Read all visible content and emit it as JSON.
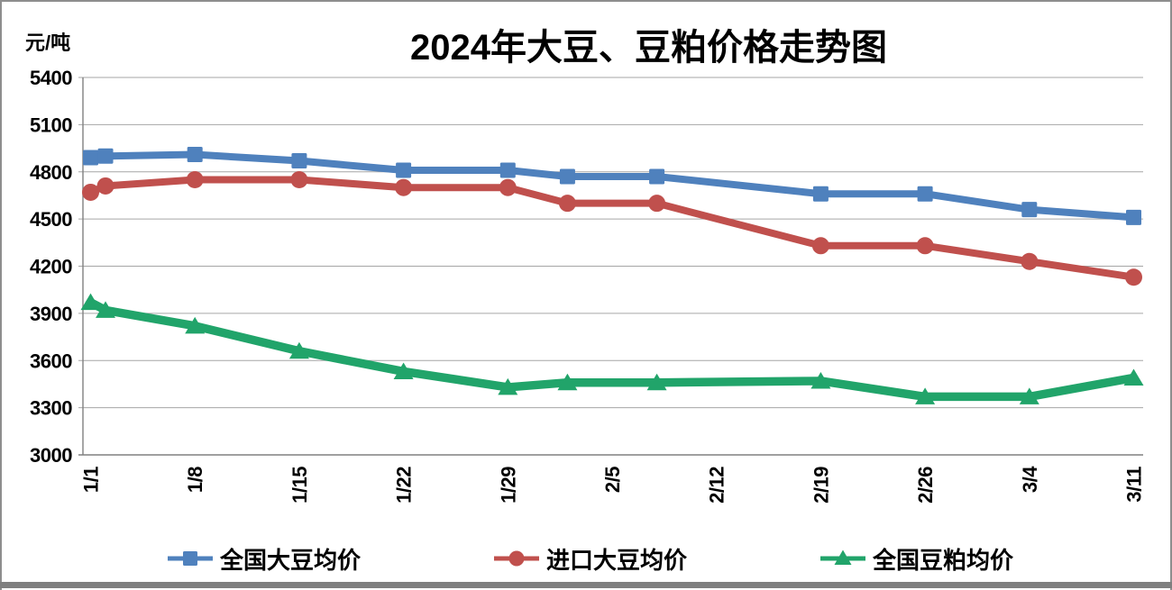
{
  "window": {
    "background": "#ffffff",
    "frame_color": "#8e8e8e",
    "bottom_bar_color": "#7f7f7f"
  },
  "chart_data": {
    "type": "line",
    "title": "2024年大豆、豆粕价格走势图",
    "ylabel": "元/吨",
    "xlabel": "",
    "ylim": [
      3000,
      5400
    ],
    "y_tick_step": 300,
    "y_ticks": [
      5400,
      5100,
      4800,
      4500,
      4200,
      3900,
      3600,
      3300,
      3000
    ],
    "x_tick_labels": [
      "1/1",
      "1/8",
      "1/15",
      "1/22",
      "1/29",
      "2/5",
      "2/12",
      "2/19",
      "2/26",
      "3/4",
      "3/11"
    ],
    "x_tick_days": [
      0,
      7,
      14,
      21,
      28,
      35,
      42,
      49,
      56,
      63,
      70
    ],
    "x_dates": [
      "1/1",
      "1/2",
      "1/8",
      "1/15",
      "1/22",
      "1/29",
      "2/2",
      "2/8",
      "2/19",
      "2/26",
      "3/4",
      "3/11"
    ],
    "x_days": [
      0,
      1,
      7,
      14,
      21,
      28,
      32,
      38,
      49,
      56,
      63,
      70
    ],
    "x_max_day": 70,
    "grid": true,
    "legend_position": "bottom",
    "gridline_color": "#a6a6a6",
    "axis_color": "#808080",
    "text_color": "#000000",
    "series": [
      {
        "name": "全国大豆均价",
        "color": "#4f81bd",
        "marker": "square",
        "values": [
          4890,
          4900,
          4910,
          4870,
          4810,
          4810,
          4770,
          4770,
          4660,
          4660,
          4560,
          4510
        ]
      },
      {
        "name": "进口大豆均价",
        "color": "#c0504d",
        "marker": "circle",
        "values": [
          4670,
          4710,
          4750,
          4750,
          4700,
          4700,
          4600,
          4600,
          4330,
          4330,
          4230,
          4130
        ]
      },
      {
        "name": "全国豆粕均价",
        "color": "#21a46a",
        "marker": "triangle",
        "values": [
          3970,
          3920,
          3820,
          3660,
          3530,
          3430,
          3460,
          3460,
          3470,
          3370,
          3370,
          3490
        ]
      }
    ]
  }
}
